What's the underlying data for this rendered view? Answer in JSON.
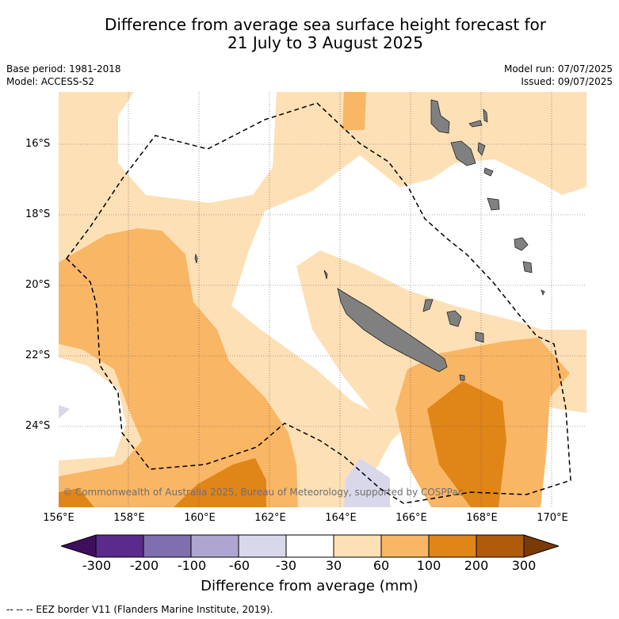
{
  "title": {
    "line1": "Difference from average sea surface height forecast for",
    "line2": "21 July to 3 August 2025"
  },
  "meta": {
    "base_period": "Base period: 1981-2018",
    "model": "Model: ACCESS-S2",
    "model_run": "Model run: 07/07/2025",
    "issued": "Issued: 09/07/2025"
  },
  "copyright": "© Commonwealth of Australia 2025, Bureau of Meteorology, supported by COSPPac",
  "axes": {
    "lat_labels": [
      "16°S",
      "18°S",
      "20°S",
      "22°S",
      "24°S"
    ],
    "lon_labels": [
      "156°E",
      "158°E",
      "160°E",
      "162°E",
      "164°E",
      "166°E",
      "168°E",
      "170°E"
    ]
  },
  "colorbar": {
    "ticks": [
      "-300",
      "-200",
      "-100",
      "-60",
      "-30",
      "30",
      "60",
      "100",
      "200",
      "300"
    ],
    "colors": [
      "#3f0f5e",
      "#5a2a8c",
      "#7e6fae",
      "#aea6d1",
      "#d9d8eb",
      "#ffffff",
      "#fde0b6",
      "#f9b665",
      "#e08518",
      "#b05a0b",
      "#7a3a05"
    ],
    "label": "Difference from average (mm)"
  },
  "map_colors": {
    "c30_60": "#fde0b6",
    "c60_100": "#f9b665",
    "c100_200": "#e08518",
    "neg30_60": "#d9d8eb",
    "land": "#808080"
  },
  "footer": "-- -- -- EEZ border V11 (Flanders Marine Institute, 2019)."
}
